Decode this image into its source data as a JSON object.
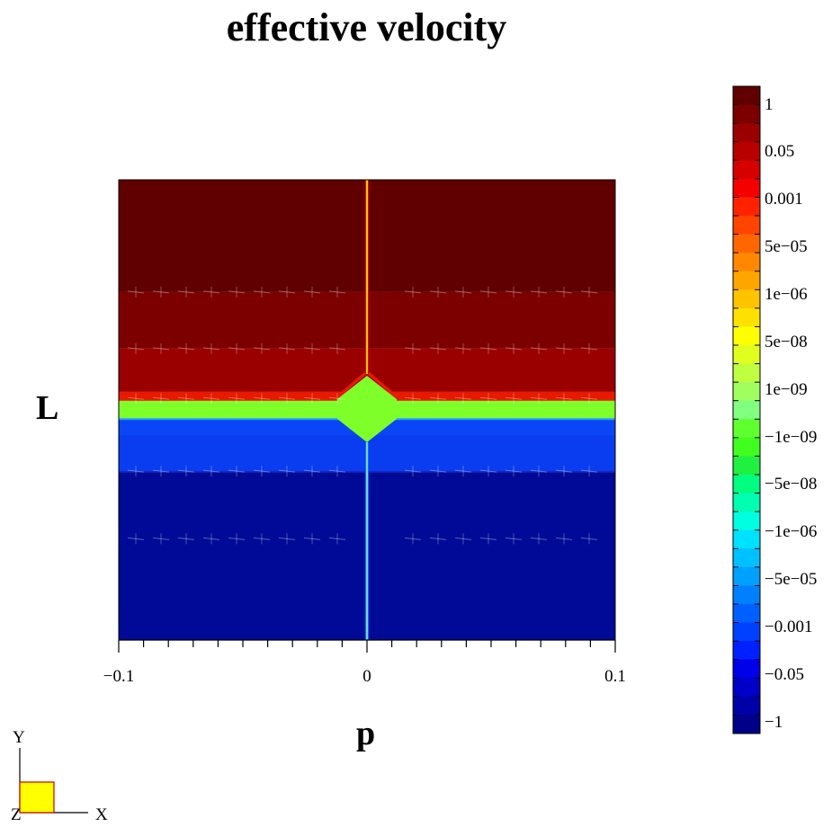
{
  "chart_data": {
    "type": "heatmap",
    "title": "effective velocity",
    "xlabel": "p",
    "ylabel": "L",
    "xlim": [
      -0.1,
      0.1
    ],
    "x_tick_labels": [
      "−0.1",
      "0",
      "0.1"
    ],
    "x_tick_values": [
      -0.1,
      0,
      0.1
    ],
    "colorbar": {
      "labels": [
        "1",
        "0.05",
        "0.001",
        "5e−05",
        "1e−06",
        "5e−08",
        "1e−09",
        "−1e−09",
        "−5e−08",
        "−1e−06",
        "−5e−05",
        "−0.001",
        "−0.05",
        "−1"
      ],
      "colors": [
        "#600000",
        "#7d0000",
        "#9b0000",
        "#b80000",
        "#d60000",
        "#f40000",
        "#ff2200",
        "#ff4400",
        "#ff6600",
        "#ff8800",
        "#ffa500",
        "#ffc300",
        "#ffe100",
        "#ffff00",
        "#e0ff1f",
        "#c0ff3f",
        "#a0ff5f",
        "#80ff80",
        "#60ff30",
        "#40ff20",
        "#20f040",
        "#00ff80",
        "#00ffb0",
        "#00ffe0",
        "#00e0ff",
        "#00c0ff",
        "#00a0ff",
        "#0080ff",
        "#0060ff",
        "#0040ff",
        "#0020ff",
        "#0000e8",
        "#0000c8",
        "#0000a8",
        "#000088"
      ]
    },
    "bands": [
      {
        "label": "1",
        "color": "#600000"
      },
      {
        "label": "",
        "color": "#7d0000"
      },
      {
        "label": "",
        "color": "#9b0000"
      },
      {
        "label": "",
        "color": "#d40000"
      },
      {
        "label": "",
        "color": "#7fff2a"
      },
      {
        "label": "",
        "color": "#0a3cf0"
      },
      {
        "label": "",
        "color": "#0014c8"
      },
      {
        "label": "-1",
        "color": "#000a96"
      }
    ]
  },
  "axes_triad": {
    "y": "Y",
    "x": "X",
    "z": "Z"
  }
}
